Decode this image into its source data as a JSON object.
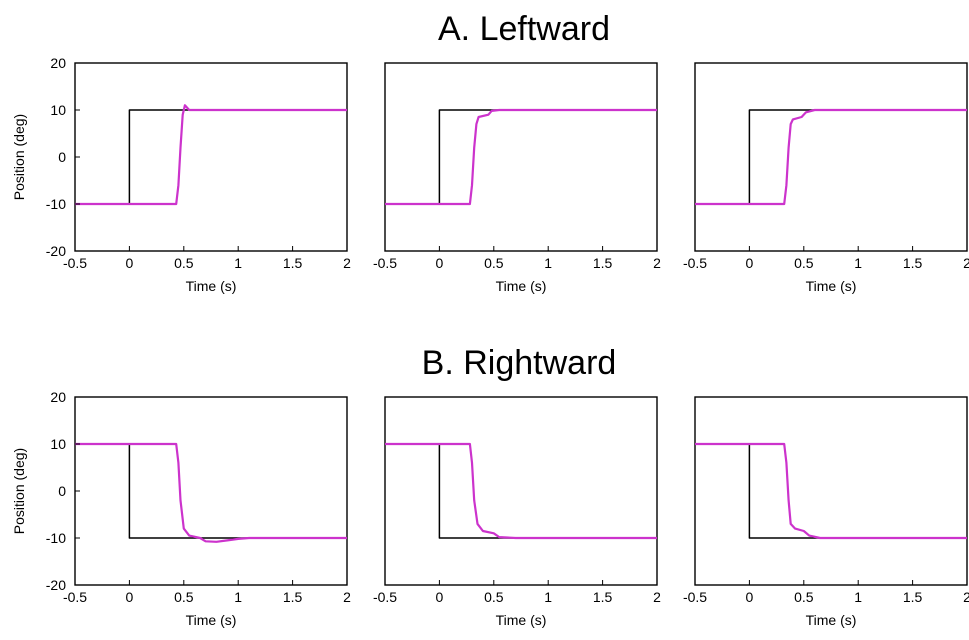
{
  "figure": {
    "rows": [
      {
        "title": "A. Leftward"
      },
      {
        "title": "B. Rightward"
      }
    ]
  },
  "colors": {
    "target": "#000000",
    "response": "#cc33cc",
    "frame": "#000000"
  },
  "chart_data": [
    {
      "type": "line",
      "row": 0,
      "col": 0,
      "xlabel": "Time (s)",
      "ylabel": "Position (deg)",
      "xlim": [
        -0.5,
        2
      ],
      "ylim": [
        -20,
        20
      ],
      "xticks": [
        "-0.5",
        "0",
        "0.5",
        "1",
        "1.5",
        "2"
      ],
      "yticks": [
        "20",
        "10",
        "0",
        "-10",
        "-20"
      ],
      "show_yticks": true,
      "series": [
        {
          "role": "target",
          "x": [
            -0.5,
            0,
            0,
            2
          ],
          "y": [
            -10,
            -10,
            10,
            10
          ]
        },
        {
          "role": "response",
          "x": [
            -0.5,
            0.43,
            0.45,
            0.47,
            0.49,
            0.51,
            0.55,
            0.6,
            2
          ],
          "y": [
            -10,
            -10,
            -6,
            2,
            9,
            11,
            10,
            10,
            10
          ]
        }
      ]
    },
    {
      "type": "line",
      "row": 0,
      "col": 1,
      "xlabel": "Time (s)",
      "ylabel": "",
      "xlim": [
        -0.5,
        2
      ],
      "ylim": [
        -20,
        20
      ],
      "xticks": [
        "-0.5",
        "0",
        "0.5",
        "1",
        "1.5",
        "2"
      ],
      "yticks": [],
      "show_yticks": false,
      "series": [
        {
          "role": "target",
          "x": [
            -0.5,
            0,
            0,
            2
          ],
          "y": [
            -10,
            -10,
            10,
            10
          ]
        },
        {
          "role": "response",
          "x": [
            -0.5,
            0.28,
            0.3,
            0.32,
            0.34,
            0.36,
            0.45,
            0.48,
            0.55,
            2
          ],
          "y": [
            -10,
            -10,
            -6,
            2,
            7,
            8.5,
            9,
            9.8,
            10,
            10
          ]
        }
      ]
    },
    {
      "type": "line",
      "row": 0,
      "col": 2,
      "xlabel": "Time (s)",
      "ylabel": "",
      "xlim": [
        -0.5,
        2
      ],
      "ylim": [
        -20,
        20
      ],
      "xticks": [
        "-0.5",
        "0",
        "0.5",
        "1",
        "1.5",
        "2"
      ],
      "yticks": [],
      "show_yticks": false,
      "series": [
        {
          "role": "target",
          "x": [
            -0.5,
            0,
            0,
            1.5
          ],
          "y": [
            -10,
            -10,
            10,
            10
          ]
        },
        {
          "role": "response",
          "x": [
            -0.5,
            0.32,
            0.34,
            0.36,
            0.38,
            0.4,
            0.48,
            0.52,
            0.6,
            2
          ],
          "y": [
            -10,
            -10,
            -6,
            2,
            7,
            8,
            8.5,
            9.5,
            10,
            10
          ]
        }
      ]
    },
    {
      "type": "line",
      "row": 1,
      "col": 0,
      "xlabel": "Time (s)",
      "ylabel": "Position (deg)",
      "xlim": [
        -0.5,
        2
      ],
      "ylim": [
        -20,
        20
      ],
      "xticks": [
        "-0.5",
        "0",
        "0.5",
        "1",
        "1.5",
        "2"
      ],
      "yticks": [
        "20",
        "10",
        "0",
        "-10",
        "-20"
      ],
      "show_yticks": true,
      "series": [
        {
          "role": "target",
          "x": [
            -0.5,
            0,
            0,
            2
          ],
          "y": [
            10,
            10,
            -10,
            -10
          ]
        },
        {
          "role": "response",
          "x": [
            -0.5,
            0.43,
            0.45,
            0.47,
            0.5,
            0.55,
            0.65,
            0.7,
            0.8,
            0.9,
            1.0,
            1.1,
            2
          ],
          "y": [
            10,
            10,
            6,
            -2,
            -8,
            -9.5,
            -10,
            -10.7,
            -10.8,
            -10.5,
            -10.2,
            -10,
            -10
          ]
        }
      ]
    },
    {
      "type": "line",
      "row": 1,
      "col": 1,
      "xlabel": "Time (s)",
      "ylabel": "",
      "xlim": [
        -0.5,
        2
      ],
      "ylim": [
        -20,
        20
      ],
      "xticks": [
        "-0.5",
        "0",
        "0.5",
        "1",
        "1.5",
        "2"
      ],
      "yticks": [],
      "show_yticks": false,
      "series": [
        {
          "role": "target",
          "x": [
            -0.5,
            0,
            0,
            2
          ],
          "y": [
            10,
            10,
            -10,
            -10
          ]
        },
        {
          "role": "response",
          "x": [
            -0.5,
            0.28,
            0.3,
            0.32,
            0.35,
            0.4,
            0.5,
            0.55,
            0.7,
            2
          ],
          "y": [
            10,
            10,
            6,
            -2,
            -7,
            -8.5,
            -9,
            -9.8,
            -10,
            -10
          ]
        }
      ]
    },
    {
      "type": "line",
      "row": 1,
      "col": 2,
      "xlabel": "Time (s)",
      "ylabel": "",
      "xlim": [
        -0.5,
        2
      ],
      "ylim": [
        -20,
        20
      ],
      "xticks": [
        "-0.5",
        "0",
        "0.5",
        "1",
        "1.5",
        "2"
      ],
      "yticks": [],
      "show_yticks": false,
      "series": [
        {
          "role": "target",
          "x": [
            -0.5,
            0,
            0,
            1.5
          ],
          "y": [
            10,
            10,
            -10,
            -10
          ]
        },
        {
          "role": "response",
          "x": [
            -0.5,
            0.32,
            0.34,
            0.36,
            0.38,
            0.42,
            0.5,
            0.55,
            0.65,
            2
          ],
          "y": [
            10,
            10,
            6,
            -2,
            -7,
            -8,
            -8.5,
            -9.5,
            -10,
            -10
          ]
        }
      ]
    }
  ]
}
